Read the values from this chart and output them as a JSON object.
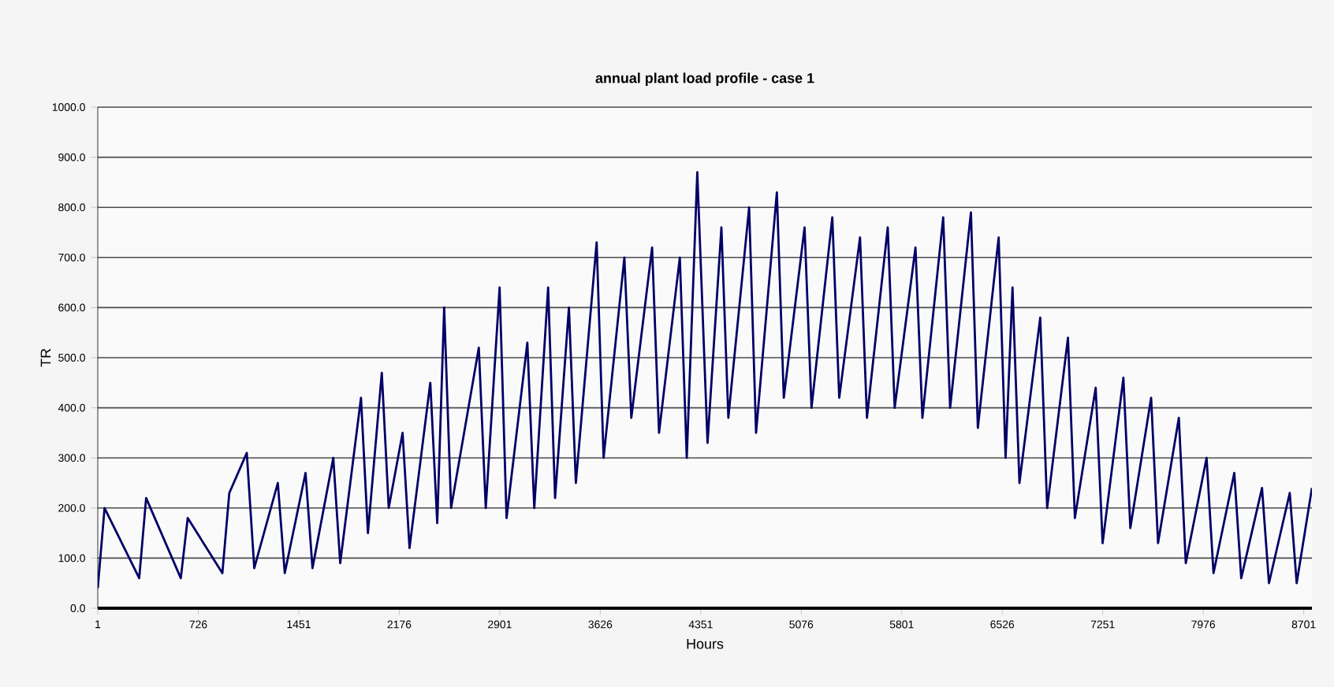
{
  "chart_data": {
    "type": "line",
    "title": "annual plant load profile - case 1",
    "xlabel": "Hours",
    "ylabel": "TR",
    "xlim": [
      1,
      8760
    ],
    "ylim": [
      0,
      1000
    ],
    "xticks": [
      1,
      726,
      1451,
      2176,
      2901,
      3626,
      4351,
      5076,
      5801,
      6526,
      7251,
      7976,
      8701
    ],
    "yticks": [
      {
        "value": 0,
        "label": "0.0"
      },
      {
        "value": 100,
        "label": "100.0"
      },
      {
        "value": 200,
        "label": "200.0"
      },
      {
        "value": 300,
        "label": "300.0"
      },
      {
        "value": 400,
        "label": "400.0"
      },
      {
        "value": 500,
        "label": "500.0"
      },
      {
        "value": 600,
        "label": "600.0"
      },
      {
        "value": 700,
        "label": "700.0"
      },
      {
        "value": 800,
        "label": "800.0"
      },
      {
        "value": 900,
        "label": "900.0"
      },
      {
        "value": 1000,
        "label": "1000.0"
      }
    ],
    "grid": "y",
    "marker": "none",
    "line_style": "solid",
    "series": [
      {
        "color": "#000066",
        "x": [
          1,
          50,
          300,
          350,
          600,
          650,
          900,
          950,
          1076,
          1130,
          1300,
          1350,
          1500,
          1550,
          1700,
          1750,
          1900,
          1950,
          2050,
          2100,
          2200,
          2250,
          2400,
          2450,
          2500,
          2550,
          2750,
          2800,
          2900,
          2950,
          3100,
          3150,
          3250,
          3300,
          3400,
          3450,
          3600,
          3650,
          3800,
          3850,
          4000,
          4050,
          4200,
          4250,
          4326,
          4400,
          4500,
          4550,
          4700,
          4750,
          4900,
          4950,
          5100,
          5150,
          5300,
          5350,
          5500,
          5550,
          5700,
          5750,
          5900,
          5950,
          6100,
          6150,
          6300,
          6350,
          6500,
          6550,
          6600,
          6650,
          6800,
          6850,
          7000,
          7050,
          7200,
          7250,
          7400,
          7450,
          7600,
          7650,
          7800,
          7850,
          8000,
          8050,
          8200,
          8250,
          8400,
          8450,
          8600,
          8650,
          8760
        ],
        "values": [
          40,
          200,
          60,
          220,
          60,
          180,
          70,
          230,
          310,
          80,
          250,
          70,
          270,
          80,
          300,
          90,
          420,
          150,
          470,
          200,
          350,
          120,
          450,
          170,
          600,
          200,
          520,
          200,
          640,
          180,
          530,
          200,
          640,
          220,
          600,
          250,
          730,
          300,
          700,
          380,
          720,
          350,
          700,
          300,
          870,
          330,
          760,
          380,
          800,
          350,
          830,
          420,
          760,
          400,
          780,
          420,
          740,
          380,
          760,
          400,
          720,
          380,
          780,
          400,
          790,
          360,
          740,
          300,
          640,
          250,
          580,
          200,
          540,
          180,
          440,
          130,
          460,
          160,
          420,
          130,
          380,
          90,
          300,
          70,
          270,
          60,
          240,
          50,
          230,
          50,
          240
        ]
      }
    ]
  }
}
